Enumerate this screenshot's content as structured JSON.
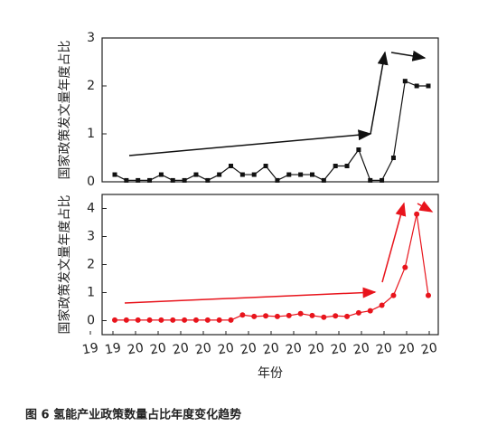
{
  "chart_data": [
    {
      "type": "line",
      "y_label": "国家政策发文量年度占比",
      "color": "#111111",
      "marker": "square",
      "ylim": [
        0,
        3
      ],
      "yticks": [
        0,
        1,
        2,
        3
      ],
      "values": [
        0.15,
        0.03,
        0.03,
        0.03,
        0.15,
        0.03,
        0.03,
        0.15,
        0.03,
        0.15,
        0.33,
        0.15,
        0.15,
        0.33,
        0.03,
        0.15,
        0.15,
        0.15,
        0.03,
        0.33,
        0.33,
        0.67,
        0.03,
        0.03,
        0.5,
        2.1,
        2.0,
        2.0
      ]
    },
    {
      "type": "line",
      "y_label": "国家政策发文量年度占比",
      "color": "#e8141c",
      "marker": "circle",
      "ylim": [
        -0.5,
        4.5
      ],
      "yticks": [
        0,
        1,
        2,
        3,
        4
      ],
      "x_label": "年份",
      "xticklabels": [
        "19",
        "19",
        "20",
        "20",
        "20",
        "20",
        "20",
        "20",
        "20",
        "20",
        "20",
        "20",
        "20",
        "20",
        "20",
        "20"
      ],
      "values": [
        0.02,
        0.02,
        0.02,
        0.02,
        0.02,
        0.02,
        0.02,
        0.02,
        0.02,
        0.02,
        0.02,
        0.2,
        0.15,
        0.17,
        0.15,
        0.18,
        0.25,
        0.18,
        0.12,
        0.17,
        0.15,
        0.28,
        0.35,
        0.55,
        0.9,
        1.9,
        3.8,
        0.9
      ]
    }
  ],
  "caption": "图 6  氢能产业政策数量占比年度变化趋势"
}
